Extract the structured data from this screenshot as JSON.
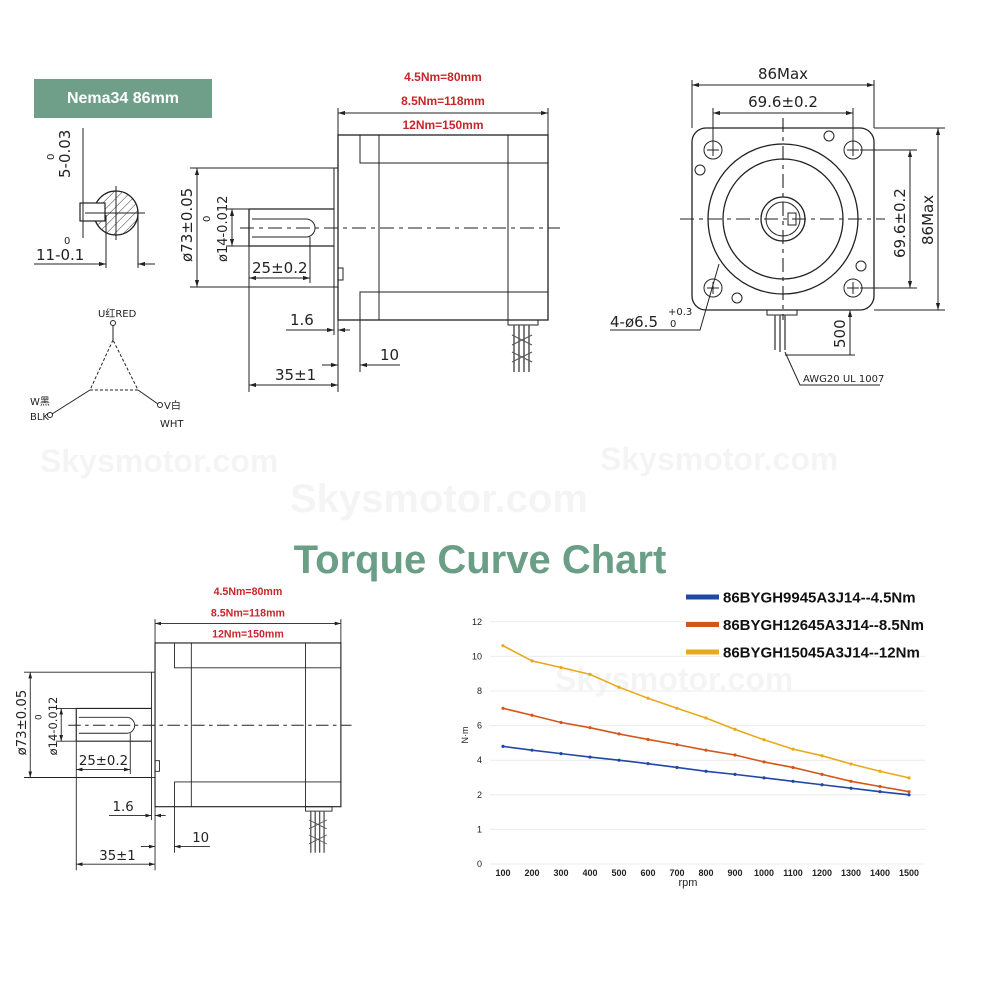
{
  "badge": "Nema34 86mm",
  "title": "Torque Curve Chart",
  "watermark": "Skysmotor.com",
  "shaft_section": {
    "keyway_depth": "5-0.03",
    "keyway_depth_tol": "0",
    "flat": "11-0.1",
    "flat_tol": "0"
  },
  "wiring": {
    "u": "U红RED",
    "w": "W黑",
    "w_en": "BLK",
    "v": "V白",
    "v_en": "WHT"
  },
  "side_view": {
    "lengths": [
      "4.5Nm=80mm",
      "8.5Nm=118mm",
      "12Nm=150mm"
    ],
    "pilot_dia": "ø73±0.05",
    "shaft_dia": "ø14-0.012",
    "shaft_dia_tol": "0",
    "key_len": "25±0.2",
    "pilot_depth": "1.6",
    "flange": "10",
    "shaft_len": "35±1"
  },
  "front_view": {
    "width": "86Max",
    "hole_spacing": "69.6±0.2",
    "height": "86Max",
    "hole_spacing_v": "69.6±0.2",
    "holes": "4-ø6.5",
    "holes_tol": "+0.3",
    "holes_tol2": "0",
    "lead_len": "500",
    "wire": "AWG20 UL 1007"
  },
  "chart_data": {
    "type": "line",
    "title": "Torque Curve Chart",
    "xlabel": "rpm",
    "ylabel": "N·m",
    "categories": [
      100,
      200,
      300,
      400,
      500,
      600,
      700,
      800,
      900,
      1000,
      1100,
      1200,
      1300,
      1400,
      1500
    ],
    "y_tick_labels": [
      "0",
      "1",
      "2",
      "4",
      "6",
      "8",
      "10",
      "12"
    ],
    "grid": true,
    "legend_position": "top-right",
    "series": [
      {
        "name": "86BYGH9945A3J14--4.5Nm",
        "color": "#2148a3",
        "values": [
          4.8,
          4.58,
          4.38,
          4.18,
          4.0,
          3.8,
          3.58,
          3.36,
          3.18,
          2.98,
          2.78,
          2.58,
          2.38,
          2.18,
          2.0
        ]
      },
      {
        "name": "86BYGH12645A3J14--8.5Nm",
        "color": "#d4561c",
        "values": [
          7.0,
          6.6,
          6.18,
          5.88,
          5.52,
          5.2,
          4.9,
          4.58,
          4.3,
          3.9,
          3.58,
          3.18,
          2.78,
          2.48,
          2.18
        ]
      },
      {
        "name": "86BYGH15045A3J14--12Nm",
        "color": "#e8aa1c",
        "values": [
          10.62,
          9.74,
          9.36,
          8.96,
          8.22,
          7.58,
          7.0,
          6.44,
          5.78,
          5.18,
          4.64,
          4.26,
          3.78,
          3.36,
          2.98
        ]
      }
    ]
  }
}
